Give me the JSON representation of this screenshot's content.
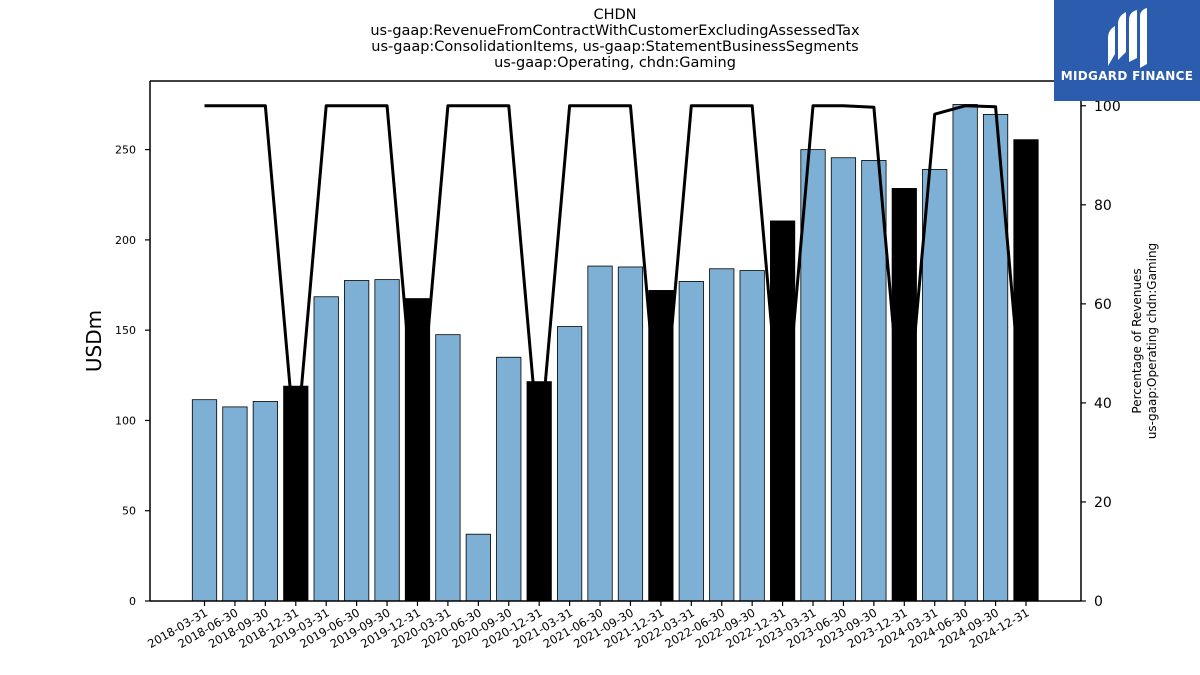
{
  "chart_data": {
    "type": "bar",
    "title_lines": [
      "CHDN",
      "us-gaap:RevenueFromContractWithCustomerExcludingAssessedTax",
      "us-gaap:ConsolidationItems, us-gaap:StatementBusinessSegments",
      "us-gaap:Operating, chdn:Gaming"
    ],
    "ylabel": "USDm",
    "y2label_lines": [
      "Percentage of Revenues",
      "us-gaap:Operating chdn:Gaming"
    ],
    "ylim": [
      0,
      288
    ],
    "y2lim": [
      0,
      105
    ],
    "yticks": [
      0,
      50,
      100,
      150,
      200,
      250
    ],
    "y2ticks": [
      0,
      20,
      40,
      60,
      80,
      100
    ],
    "categories": [
      "2018-03-31",
      "2018-06-30",
      "2018-09-30",
      "2018-12-31",
      "2019-03-31",
      "2019-06-30",
      "2019-09-30",
      "2019-12-31",
      "2020-03-31",
      "2020-06-30",
      "2020-09-30",
      "2020-12-31",
      "2021-03-31",
      "2021-06-30",
      "2021-09-30",
      "2021-12-31",
      "2022-03-31",
      "2022-06-30",
      "2022-09-30",
      "2022-12-31",
      "2023-03-31",
      "2023-06-30",
      "2023-09-30",
      "2023-12-31",
      "2024-03-31",
      "2024-06-30",
      "2024-09-30",
      "2024-12-31"
    ],
    "values": [
      111.5,
      107.5,
      110.5,
      119,
      168.5,
      177.5,
      178,
      167.5,
      147.5,
      37,
      135,
      121.5,
      152,
      185.5,
      185,
      172,
      177,
      184,
      183,
      210.5,
      250,
      245.5,
      244,
      228.5,
      239,
      275,
      269.5,
      255.5
    ],
    "bar_kind": [
      "q",
      "q",
      "q",
      "fy",
      "q",
      "q",
      "q",
      "fy",
      "q",
      "q",
      "q",
      "fy",
      "q",
      "q",
      "q",
      "fy",
      "q",
      "q",
      "q",
      "fy",
      "q",
      "q",
      "q",
      "fy",
      "q",
      "q",
      "q",
      "fy"
    ],
    "percentage_line": [
      100,
      100,
      100,
      30,
      100,
      100,
      100,
      30,
      100,
      100,
      100,
      30,
      100,
      100,
      100,
      30,
      100,
      100,
      100,
      30,
      100,
      100,
      99.7,
      30,
      98.3,
      100,
      99.8,
      30
    ],
    "colors": {
      "quarter_bar": "#7eb0d5",
      "fy_bar": "#000000",
      "line": "#000000",
      "bar_edge": "#000000"
    },
    "grid": false,
    "legend": "none"
  },
  "logo": {
    "text": "MIDGARD FINANCE",
    "background": "#2b5cad"
  }
}
